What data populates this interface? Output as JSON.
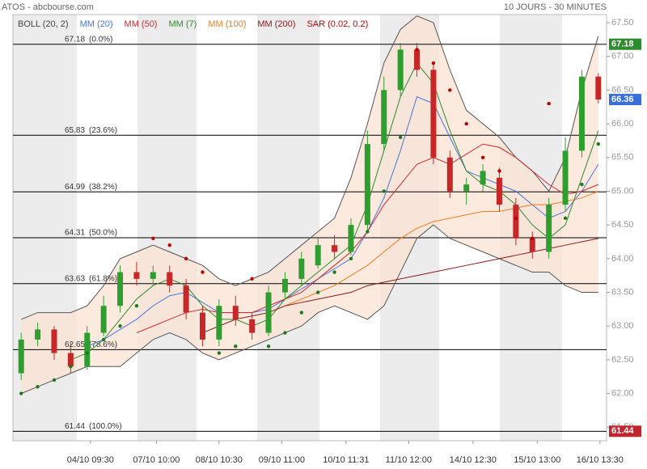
{
  "chart_data": {
    "type": "candlestick",
    "title": "ATOS - abcbourse.com",
    "subtitle": "10 JOURS - 30 MINUTES",
    "ylim": [
      61.3,
      67.62
    ],
    "xlim": [
      -0.5,
      35.5
    ],
    "yticks": [
      {
        "value": 61.5,
        "label": "61.50"
      },
      {
        "value": 62,
        "label": "62.00"
      },
      {
        "value": 62.5,
        "label": "62.50"
      },
      {
        "value": 63,
        "label": "63.00"
      },
      {
        "value": 63.5,
        "label": "63.50"
      },
      {
        "value": 64,
        "label": "64.00"
      },
      {
        "value": 64.5,
        "label": "64.50"
      },
      {
        "value": 65,
        "label": "65.00"
      },
      {
        "value": 65.5,
        "label": "65.50"
      },
      {
        "value": 66,
        "label": "66.00"
      },
      {
        "value": 66.5,
        "label": "66.50"
      },
      {
        "value": 67,
        "label": "67.00"
      },
      {
        "value": 67.5,
        "label": "67.50"
      }
    ],
    "xticks": [
      {
        "value": 4.2,
        "label": "04/10 09:30"
      },
      {
        "value": 8.2,
        "label": "07/10 10:00"
      },
      {
        "value": 12,
        "label": "08/10 10:30"
      },
      {
        "value": 15.8,
        "label": "09/10 11:00"
      },
      {
        "value": 19.7,
        "label": "10/10 11:31"
      },
      {
        "value": 23.5,
        "label": "11/10 12:00"
      },
      {
        "value": 27.4,
        "label": "14/10 12:30"
      },
      {
        "value": 31.3,
        "label": "15/10 13:00"
      },
      {
        "value": 35.1,
        "label": "16/10 13:30"
      }
    ],
    "candles": {
      "open": [
        62.3,
        62.8,
        62.95,
        62.6,
        62.4,
        62.9,
        63.3,
        63.8,
        63.7,
        63.8,
        63.6,
        63.2,
        62.8,
        63.3,
        63.1,
        62.9,
        63.5,
        63.7,
        63.9,
        64.2,
        64.1,
        64.5,
        65.7,
        66.5,
        67.1,
        66.8,
        65.5,
        65.0,
        65.1,
        65.2,
        64.8,
        64.3,
        64.1,
        64.8,
        65.6,
        66.7
      ],
      "high": [
        62.9,
        63.05,
        63.0,
        62.75,
        63.0,
        63.45,
        63.9,
        63.95,
        63.9,
        63.9,
        63.7,
        63.3,
        63.4,
        63.45,
        63.2,
        63.6,
        63.8,
        64.1,
        64.3,
        64.35,
        64.6,
        65.9,
        66.7,
        67.2,
        67.2,
        66.9,
        65.6,
        65.2,
        65.4,
        65.35,
        64.9,
        64.4,
        64.9,
        65.8,
        66.8,
        66.75
      ],
      "low": [
        62.2,
        62.7,
        62.5,
        62.3,
        62.35,
        62.85,
        63.2,
        63.6,
        63.6,
        63.5,
        63.1,
        62.7,
        62.7,
        63.0,
        62.8,
        62.85,
        63.4,
        63.6,
        63.85,
        64.0,
        64.05,
        64.4,
        65.6,
        66.4,
        66.7,
        65.4,
        64.9,
        64.8,
        65.0,
        64.7,
        64.2,
        64.0,
        64.0,
        64.7,
        65.5,
        66.3
      ],
      "close": [
        62.8,
        62.95,
        62.6,
        62.4,
        62.9,
        63.3,
        63.8,
        63.7,
        63.8,
        63.6,
        63.2,
        62.8,
        63.3,
        63.1,
        62.9,
        63.5,
        63.7,
        64.0,
        64.2,
        64.1,
        64.5,
        65.7,
        66.5,
        67.1,
        66.8,
        65.5,
        65.0,
        65.1,
        65.3,
        64.8,
        64.3,
        64.1,
        64.8,
        65.6,
        66.7,
        66.36
      ],
      "up_color": "#2e9e2e",
      "down_color": "#c62828"
    },
    "bollinger": {
      "name": "BOLL (20, 2)",
      "color": "#555555",
      "fill": "#fbe3d4",
      "upper": [
        63.1,
        63.2,
        63.2,
        63.2,
        63.3,
        63.6,
        64.0,
        64.1,
        64.2,
        64.1,
        64.0,
        63.9,
        63.7,
        63.6,
        63.7,
        63.8,
        64.0,
        64.2,
        64.4,
        64.6,
        65.2,
        66.0,
        66.9,
        67.4,
        67.6,
        67.5,
        66.8,
        66.2,
        66.0,
        65.8,
        65.5,
        65.3,
        65.0,
        65.5,
        66.5,
        67.3
      ],
      "lower": [
        62.0,
        62.1,
        62.2,
        62.3,
        62.4,
        62.4,
        62.4,
        62.6,
        62.8,
        62.9,
        62.8,
        62.6,
        62.5,
        62.6,
        62.7,
        62.8,
        62.9,
        63.0,
        63.2,
        63.3,
        63.2,
        63.1,
        63.3,
        63.8,
        64.3,
        64.5,
        64.3,
        64.2,
        64.1,
        64.0,
        63.9,
        63.8,
        63.8,
        63.6,
        63.5,
        63.5
      ]
    },
    "series": [
      {
        "name": "MM (20)",
        "color": "#4a74e0",
        "values": [
          null,
          null,
          null,
          null,
          62.7,
          62.8,
          62.95,
          63.1,
          63.3,
          63.45,
          63.5,
          63.35,
          63.2,
          63.2,
          63.2,
          63.25,
          63.4,
          63.55,
          63.7,
          63.85,
          64.0,
          64.4,
          64.9,
          65.6,
          66.4,
          66.3,
          65.8,
          65.3,
          65.2,
          65.1,
          65.0,
          64.8,
          64.6,
          64.7,
          65.0,
          65.4
        ]
      },
      {
        "name": "MM (50)",
        "color": "#d42a2a",
        "values": [
          null,
          null,
          null,
          null,
          null,
          null,
          null,
          62.9,
          63.0,
          63.1,
          63.2,
          63.25,
          63.2,
          63.2,
          63.2,
          63.3,
          63.4,
          63.5,
          63.7,
          63.9,
          64.1,
          64.4,
          64.8,
          65.1,
          65.4,
          65.5,
          65.4,
          65.55,
          65.7,
          65.65,
          65.5,
          65.3,
          65.1,
          64.95,
          65.0,
          65.1
        ]
      },
      {
        "name": "MM (7)",
        "color": "#2e8b2e",
        "values": [
          null,
          null,
          null,
          62.5,
          62.6,
          62.8,
          63.1,
          63.4,
          63.6,
          63.7,
          63.6,
          63.3,
          63.1,
          63.1,
          63.0,
          63.1,
          63.4,
          63.6,
          63.8,
          64.0,
          64.2,
          64.8,
          65.6,
          66.4,
          66.9,
          66.6,
          65.9,
          65.3,
          65.1,
          65.0,
          64.8,
          64.5,
          64.3,
          64.5,
          65.2,
          65.9
        ]
      },
      {
        "name": "MM (100)",
        "color": "#f07d1e",
        "values": [
          null,
          null,
          null,
          null,
          null,
          null,
          null,
          null,
          null,
          null,
          null,
          null,
          null,
          null,
          null,
          null,
          63.3,
          63.4,
          63.5,
          63.6,
          63.75,
          63.9,
          64.1,
          64.3,
          64.45,
          64.55,
          64.6,
          64.65,
          64.7,
          64.7,
          64.75,
          64.8,
          64.8,
          64.85,
          64.9,
          65.0
        ]
      },
      {
        "name": "MM (200)",
        "color": "#8b1a1a",
        "values": [
          null,
          null,
          null,
          null,
          null,
          null,
          null,
          null,
          null,
          null,
          null,
          62.9,
          63.0,
          63.1,
          63.15,
          63.2,
          63.3,
          63.35,
          63.4,
          63.45,
          63.5,
          63.6,
          63.65,
          63.7,
          63.75,
          63.8,
          63.85,
          63.9,
          63.95,
          64.0,
          64.05,
          64.1,
          64.15,
          64.2,
          64.25,
          64.3
        ]
      }
    ],
    "sar": {
      "name": "SAR (0.02, 0.2)",
      "color": "#c00000",
      "below_color": "#1e7a1e",
      "values": [
        62.0,
        62.1,
        62.2,
        62.4,
        62.6,
        62.8,
        63.0,
        63.3,
        64.3,
        64.2,
        64.0,
        63.8,
        62.6,
        62.7,
        63.7,
        62.7,
        62.9,
        63.2,
        63.5,
        63.8,
        64.0,
        64.4,
        65.0,
        65.8,
        67.1,
        66.9,
        66.5,
        66.0,
        65.5,
        65.3,
        64.6,
        64.3,
        66.3,
        64.6,
        65.1,
        65.7
      ]
    },
    "fibonacci": [
      {
        "value": 67.18,
        "label": "67.18",
        "ratio": "(0.0%)"
      },
      {
        "value": 65.83,
        "label": "65.83",
        "ratio": "(23.6%)"
      },
      {
        "value": 64.99,
        "label": "64.99",
        "ratio": "(38.2%)"
      },
      {
        "value": 64.31,
        "label": "64.31",
        "ratio": "(50.0%)"
      },
      {
        "value": 63.63,
        "label": "63.63",
        "ratio": "(61.8%)"
      },
      {
        "value": 62.65,
        "label": "62.65",
        "ratio": "(78.6%)"
      },
      {
        "value": 61.44,
        "label": "61.44",
        "ratio": "(100.0%)"
      }
    ],
    "price_tags": [
      {
        "value": 67.18,
        "color": "#2e8b2e"
      },
      {
        "value": 66.36,
        "color": "#3a6fd8"
      },
      {
        "value": 61.44,
        "color": "#c0262d"
      }
    ]
  }
}
